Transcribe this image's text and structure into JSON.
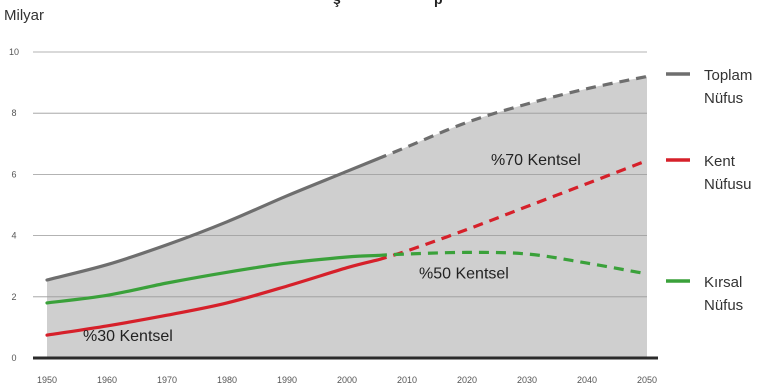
{
  "chart_data": {
    "type": "line",
    "title_fragments": [
      "ş",
      "p"
    ],
    "ylabel": "Milyar",
    "xlim": [
      1950,
      2050
    ],
    "ylim": [
      0,
      10
    ],
    "yticks": [
      0,
      2,
      4,
      6,
      8,
      10
    ],
    "xticks": [
      1950,
      1960,
      1970,
      1980,
      1990,
      2000,
      2010,
      2020,
      2030,
      2040,
      2050
    ],
    "projection_start": 2005,
    "grid": true,
    "legend_position": "right",
    "series": [
      {
        "key": "total",
        "name": [
          "Toplam",
          "Nüfus"
        ],
        "color": "#6e6e6e",
        "x": [
          1950,
          1960,
          1970,
          1980,
          1990,
          2000,
          2005,
          2010,
          2020,
          2030,
          2040,
          2050
        ],
        "y": [
          2.55,
          3.05,
          3.7,
          4.45,
          5.3,
          6.1,
          6.5,
          6.9,
          7.7,
          8.3,
          8.8,
          9.2
        ]
      },
      {
        "key": "urban",
        "name": [
          "Kent",
          "Nüfusu"
        ],
        "color": "#d6202a",
        "x": [
          1950,
          1960,
          1970,
          1980,
          1990,
          2000,
          2005,
          2010,
          2020,
          2030,
          2040,
          2050
        ],
        "y": [
          0.75,
          1.05,
          1.4,
          1.8,
          2.35,
          2.95,
          3.2,
          3.5,
          4.2,
          4.95,
          5.7,
          6.45
        ]
      },
      {
        "key": "rural",
        "name": [
          "Kırsal",
          "Nüfus"
        ],
        "color": "#3aa13a",
        "x": [
          1950,
          1960,
          1970,
          1980,
          1990,
          2000,
          2005,
          2010,
          2020,
          2030,
          2040,
          2050
        ],
        "y": [
          1.8,
          2.05,
          2.45,
          2.8,
          3.1,
          3.3,
          3.35,
          3.4,
          3.45,
          3.4,
          3.1,
          2.75
        ]
      }
    ],
    "annotations": [
      {
        "text": "%30 Kentsel",
        "x": 1956,
        "y": 0.55
      },
      {
        "text": "%50 Kentsel",
        "x": 2012,
        "y": 2.6
      },
      {
        "text": "%70 Kentsel",
        "x": 2024,
        "y": 6.3
      }
    ]
  }
}
